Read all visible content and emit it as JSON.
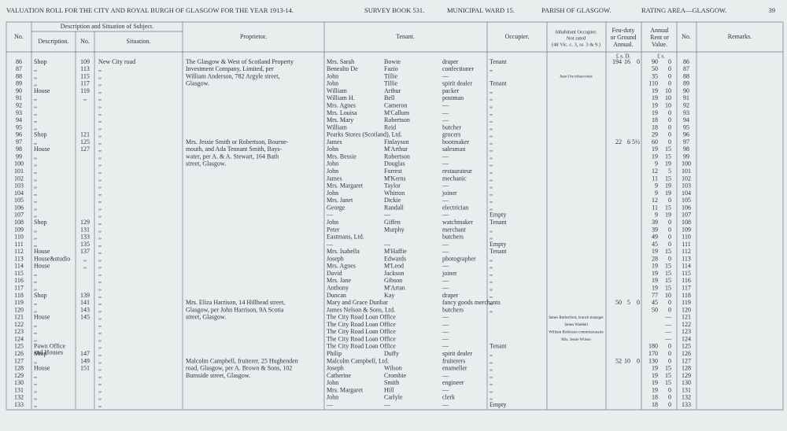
{
  "header": {
    "title": "VALUATION ROLL FOR THE CITY AND ROYAL BURGH OF GLASGOW FOR THE YEAR 1913-14.",
    "survey": "SURVEY BOOK 531.",
    "ward": "MUNICIPAL WARD 15.",
    "parish": "PARISH OF GLASGOW.",
    "area": "RATING AREA—GLASGOW.",
    "page": "39"
  },
  "columns": {
    "no": "No.",
    "group": "Description and Situation of Subject.",
    "description": "Description.",
    "number": "No.",
    "situation": "Situation.",
    "proprietor": "Proprietor.",
    "tenant": "Tenant.",
    "occupier": "Occupier.",
    "inhabitant": "Inhabitant Occupier.",
    "inhabitant2": "Not rated",
    "inhabitant3": "(48 Vic. c. 3, ss. 3 & 9.)",
    "feu": "Feu-duty",
    "feu2": "or Ground",
    "feu3": "Annual.",
    "rent": "Annual",
    "rent2": "Rent or",
    "rent3": "Value.",
    "no2": "No.",
    "remarks": "Remarks."
  },
  "units": {
    "feu": "£  s.  D.",
    "rent": "£  s."
  },
  "rows": [
    {
      "n": "86",
      "d": "Shop",
      "k": "109",
      "s": "New City road",
      "p": "The Glasgow & West of Scotland Property",
      "f": "Mrs. Sarah",
      "l": "Bowie",
      "o": "draper",
      "u": "Tenant",
      "fl": "194",
      "fs": "16",
      "fd": "0",
      "rl": "90",
      "rs": "0",
      "n2": "86"
    },
    {
      "n": "87",
      "d": ",,",
      "k": "113",
      "s": ",,",
      "p": "Investment Company, Limited, per",
      "f": "Benealto De",
      "l": "Fazio",
      "o": "confectioner",
      "u": ",,",
      "rl": "50",
      "rs": "0",
      "n2": "87"
    },
    {
      "n": "88",
      "d": ",,",
      "k": "115",
      "s": ",,",
      "p": "William Anderson, 782 Argyle street,",
      "f": "John",
      "l": "Tillie",
      "o": "—",
      "i": "Jean Ure tobacconist",
      "rl": "35",
      "rs": "0",
      "n2": "88"
    },
    {
      "n": "89",
      "d": ",,",
      "k": "117",
      "s": ",,",
      "p": "Glasgow.",
      "f": "John",
      "l": "Tillie",
      "o": "spirit dealer",
      "u": "Tenant",
      "rl": "110",
      "rs": "0",
      "n2": "89"
    },
    {
      "n": "90",
      "d": "House",
      "k": "119",
      "s": ",,",
      "f": "William",
      "l": "Arthur",
      "o": "packer",
      "u": ",,",
      "rl": "19",
      "rs": "10",
      "n2": "90"
    },
    {
      "n": "91",
      "d": ",,",
      "k": ",,",
      "s": ",,",
      "f": "William H.",
      "l": "Bell",
      "o": "postman",
      "u": ",,",
      "rl": "19",
      "rs": "10",
      "n2": "91"
    },
    {
      "n": "92",
      "d": ",,",
      "s": ",,",
      "f": "Mrs. Agnes",
      "l": "Cameron",
      "o": "—",
      "u": ",,",
      "rl": "19",
      "rs": "10",
      "n2": "92"
    },
    {
      "n": "93",
      "d": ",,",
      "s": ",,",
      "f": "Mrs. Louisa",
      "l": "M'Callum",
      "o": "—",
      "u": ",,",
      "rl": "19",
      "rs": "0",
      "n2": "93"
    },
    {
      "n": "94",
      "d": ",,",
      "s": ",,",
      "f": "Mrs. Mary",
      "l": "Robertson",
      "o": "—",
      "u": ",,",
      "rl": "18",
      "rs": "0",
      "n2": "94"
    },
    {
      "n": "95",
      "d": ",,",
      "s": ",,",
      "f": "William",
      "l": "Reid",
      "o": "butcher",
      "u": ",,",
      "rl": "18",
      "rs": "0",
      "n2": "95"
    },
    {
      "n": "96",
      "d": "Shop",
      "k": "121",
      "s": ",,",
      "f": "Pearks Stores (Scotland), Ltd.",
      "o": "grocers",
      "u": ",,",
      "rl": "29",
      "rs": "0",
      "n2": "96"
    },
    {
      "n": "97",
      "d": ",,",
      "k": "125",
      "s": ",,",
      "p": "Mrs. Jessie Smith or Robertson, Bourne-",
      "f": "James",
      "l": "Finlayson",
      "o": "bootmaker",
      "u": ",,",
      "fl": "22",
      "fs": "6",
      "fd": "5½",
      "rl": "60",
      "rs": "0",
      "n2": "97"
    },
    {
      "n": "98",
      "d": "House",
      "k": "127",
      "s": ",,",
      "p": "mouth, and Ada Tennant Smith, Bays-",
      "f": "John",
      "l": "M'Arthur",
      "o": "salesman",
      "u": ",,",
      "rl": "19",
      "rs": "15",
      "n2": "98"
    },
    {
      "n": "99",
      "d": ",,",
      "s": ",,",
      "p": "water, per A. & A. Stewart, 164 Bath",
      "f": "Mrs. Bessie",
      "l": "Robertson",
      "o": "—",
      "u": ",,",
      "rl": "19",
      "rs": "15",
      "n2": "99"
    },
    {
      "n": "100",
      "d": ",,",
      "s": ",,",
      "p": "street, Glasgow.",
      "f": "John",
      "l": "Douglas",
      "o": "—",
      "u": ",,",
      "rl": "9",
      "rs": "19",
      "n2": "100"
    },
    {
      "n": "101",
      "d": ",,",
      "s": ",,",
      "f": "John",
      "l": "Forrest",
      "o": "restaurateur",
      "u": ",,",
      "rl": "12",
      "rs": "5",
      "n2": "101"
    },
    {
      "n": "102",
      "d": ",,",
      "s": ",,",
      "f": "James",
      "l": "M'Kerns",
      "o": "mechanic",
      "u": ",,",
      "rl": "11",
      "rs": "15",
      "n2": "102"
    },
    {
      "n": "103",
      "d": ",,",
      "s": ",,",
      "f": "Mrs. Margaret",
      "l": "Taylor",
      "o": "—",
      "u": ",,",
      "rl": "9",
      "rs": "19",
      "n2": "103"
    },
    {
      "n": "104",
      "d": ",,",
      "s": ",,",
      "f": "John",
      "l": "Whitton",
      "o": "joiner",
      "u": ",,",
      "rl": "9",
      "rs": "19",
      "n2": "104"
    },
    {
      "n": "105",
      "d": ",,",
      "s": ",,",
      "f": "Mrs. Janet",
      "l": "Dickie",
      "o": "—",
      "u": ",,",
      "rl": "12",
      "rs": "0",
      "n2": "105"
    },
    {
      "n": "106",
      "d": ",,",
      "s": ",,",
      "f": "George",
      "l": "Randall",
      "o": "electrician",
      "u": ",,",
      "rl": "11",
      "rs": "15",
      "n2": "106"
    },
    {
      "n": "107",
      "d": ",,",
      "s": ",,",
      "f": "—",
      "l": "—",
      "o": "—",
      "u": "Empty",
      "rl": "9",
      "rs": "19",
      "n2": "107"
    },
    {
      "n": "108",
      "d": "Shop",
      "k": "129",
      "s": ",,",
      "f": "John",
      "l": "Giffen",
      "o": "watchmaker",
      "u": "Tenant",
      "rl": "39",
      "rs": "0",
      "n2": "108"
    },
    {
      "n": "109",
      "d": ",,",
      "k": "131",
      "s": ",,",
      "f": "Peter",
      "l": "Murphy",
      "o": "merchant",
      "u": ",,",
      "rl": "39",
      "rs": "0",
      "n2": "109"
    },
    {
      "n": "110",
      "d": ",,",
      "k": "133",
      "s": ",,",
      "f": "Eastmans, Ltd.",
      "o": "butchers",
      "u": ",,",
      "rl": "49",
      "rs": "0",
      "n2": "110"
    },
    {
      "n": "111",
      "d": ",,",
      "k": "135",
      "s": ",,",
      "f": "—",
      "l": "—",
      "o": "—",
      "u": "Empty",
      "rl": "45",
      "rs": "0",
      "n2": "111"
    },
    {
      "n": "112",
      "d": "House",
      "k": "137",
      "s": ",,",
      "f": "Mrs. Isabella",
      "l": "M'Haffie",
      "o": "—",
      "u": "Tenant",
      "rl": "19",
      "rs": "15",
      "n2": "112"
    },
    {
      "n": "113",
      "d": "House&studio",
      "k": ",,",
      "s": ",,",
      "f": "Joseph",
      "l": "Edwards",
      "o": "photographer",
      "u": ",,",
      "rl": "28",
      "rs": "0",
      "n2": "113"
    },
    {
      "n": "114",
      "d": "House",
      "k": ",,",
      "s": ",,",
      "f": "Mrs. Agnes",
      "l": "M'Leod",
      "o": "—",
      "u": ",,",
      "rl": "19",
      "rs": "15",
      "n2": "114"
    },
    {
      "n": "115",
      "d": ",,",
      "s": ",,",
      "f": "David",
      "l": "Jackson",
      "o": "joiner",
      "u": ",,",
      "rl": "19",
      "rs": "15",
      "n2": "115"
    },
    {
      "n": "116",
      "d": ",,",
      "s": ",,",
      "f": "Mrs. Jane",
      "l": "Gibson",
      "o": "—",
      "u": ",,",
      "rl": "19",
      "rs": "15",
      "n2": "116"
    },
    {
      "n": "117",
      "d": ",,",
      "s": ",,",
      "f": "Anthony",
      "l": "M'Artan",
      "o": "—",
      "u": ",,",
      "rl": "19",
      "rs": "15",
      "n2": "117"
    },
    {
      "n": "118",
      "d": "Shop",
      "k": "139",
      "s": ",,",
      "f": "Duncan",
      "l": "Kay",
      "o": "draper",
      "u": ",,",
      "rl": "77",
      "rs": "10",
      "n2": "118"
    },
    {
      "n": "119",
      "d": ",,",
      "k": "141",
      "s": ",,",
      "p": "Mrs. Eliza Harrison, 14 Hillhead street,",
      "f": "Mary and Grace Dunbar",
      "o": "fancy goods merchants",
      "u": ",,",
      "fl": "50",
      "fs": "5",
      "fd": "0",
      "rl": "45",
      "rs": "0",
      "n2": "119"
    },
    {
      "n": "120",
      "d": ",,",
      "k": "143",
      "s": ",,",
      "p": "Glasgow, per John Harrison, 9A Scotia",
      "f": "James Nelson & Sons, Ltd.",
      "o": "butchers",
      "u": ",,",
      "rl": "50",
      "rs": "0",
      "n2": "120"
    },
    {
      "n": "121",
      "d": "House",
      "k": "145",
      "s": ",,",
      "p": "street, Glasgow.",
      "f": "The City Road Loan Office",
      "o": "—",
      "i": "James Rutherford, branch manager",
      "rs": "—",
      "n2": "121"
    },
    {
      "n": "122",
      "d": ",,",
      "s": ",,",
      "f": "The City Road Loan Office",
      "o": "—",
      "i": "James Waddell",
      "rs": "—",
      "n2": "122"
    },
    {
      "n": "123",
      "d": ",,",
      "s": ",,",
      "f": "The City Road Loan Office",
      "o": "—",
      "i": "William Robinson commissionaire",
      "rs": "—",
      "n2": "123"
    },
    {
      "n": "124",
      "d": ",,",
      "s": ",,",
      "f": "The City Road Loan Office",
      "o": "—",
      "i": "Mrs. Jessie Wilson",
      "rs": "—",
      "n2": "124"
    },
    {
      "n": "125",
      "d": "Pawn Office",
      "d2": "and Houses",
      "s": ",,",
      "f": "The City Road Loan Office",
      "o": "—",
      "u": "Tenant",
      "rl": "180",
      "rs": "0",
      "n2": "125"
    },
    {
      "n": "126",
      "d": "Shop",
      "k": "147",
      "s": ",,",
      "f": "Philip",
      "l": "Duffy",
      "o": "spirit dealer",
      "u": ",,",
      "rl": "170",
      "rs": "0",
      "n2": "126"
    },
    {
      "n": "127",
      "d": ",,",
      "k": "149",
      "s": ",,",
      "p": "Malcolm Campbell, fruiterer, 25 Hughenden",
      "f": "Malcolm Campbell, Ltd.",
      "o": "fruiterers",
      "u": ",,",
      "fl": "52",
      "fs": "10",
      "fd": "0",
      "rl": "130",
      "rs": "0",
      "n2": "127"
    },
    {
      "n": "128",
      "d": "House",
      "k": "151",
      "s": ",,",
      "p": "road, Glasgow, per A. Brown & Sons, 102",
      "f": "Joseph",
      "l": "Wilson",
      "o": "enameller",
      "u": ",,",
      "rl": "19",
      "rs": "15",
      "n2": "128"
    },
    {
      "n": "129",
      "d": ",,",
      "s": ",,",
      "p": "Burnside street, Glasgow.",
      "f": "Catherine",
      "l": "Crombie",
      "o": "—",
      "u": ",,",
      "rl": "19",
      "rs": "15",
      "n2": "129"
    },
    {
      "n": "130",
      "d": ",,",
      "s": ",,",
      "f": "John",
      "l": "Smith",
      "o": "engineer",
      "u": ",,",
      "rl": "19",
      "rs": "15",
      "n2": "130"
    },
    {
      "n": "131",
      "d": ",,",
      "s": ",,",
      "f": "Mrs. Margaret",
      "l": "Hill",
      "o": "—",
      "u": ",,",
      "rl": "19",
      "rs": "0",
      "n2": "131"
    },
    {
      "n": "132",
      "d": ",,",
      "s": ",,",
      "f": "John",
      "l": "Carlyle",
      "o": "clerk",
      "u": ",,",
      "rl": "18",
      "rs": "0",
      "n2": "132"
    },
    {
      "n": "133",
      "d": ",,",
      "s": ",,",
      "f": "—",
      "l": "—",
      "o": "—",
      "u": "Empty",
      "rl": "18",
      "rs": "0",
      "n2": "133"
    }
  ]
}
